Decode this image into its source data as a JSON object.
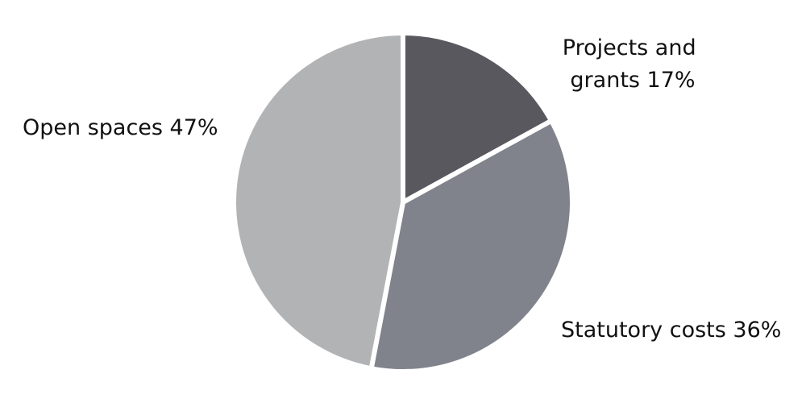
{
  "chart_data": {
    "type": "pie",
    "title": "",
    "start_angle_deg": 0,
    "direction": "clockwise",
    "slices": [
      {
        "name": "Projects and grants",
        "label_lines": [
          "Projects and",
          "grants 17%"
        ],
        "value": 17,
        "color": "#58585e"
      },
      {
        "name": "Statutory costs",
        "label_lines": [
          "Statutory costs 36%"
        ],
        "value": 36,
        "color": "#80838b"
      },
      {
        "name": "Open spaces",
        "label_lines": [
          "Open spaces 47%"
        ],
        "value": 47,
        "color": "#b2b3b5"
      }
    ],
    "legend": "none",
    "slice_separator_color": "#ffffff"
  }
}
